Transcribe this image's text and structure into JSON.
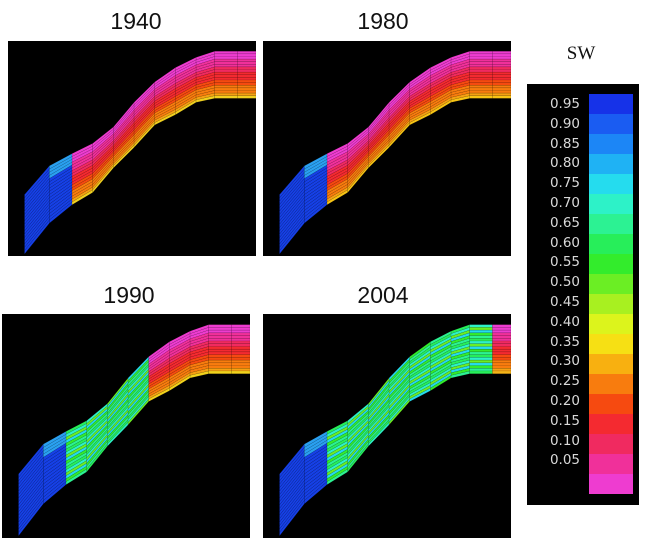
{
  "legend": {
    "title": "SW",
    "labels": [
      "0.95",
      "0.90",
      "0.85",
      "0.80",
      "0.75",
      "0.70",
      "0.65",
      "0.60",
      "0.55",
      "0.50",
      "0.45",
      "0.40",
      "0.35",
      "0.30",
      "0.25",
      "0.20",
      "0.15",
      "0.10",
      "0.05"
    ],
    "colors": [
      "#1632e8",
      "#1a5cf2",
      "#1c86f6",
      "#1fb2f4",
      "#25dcee",
      "#2df2c8",
      "#2cf293",
      "#27ee5a",
      "#33ec2c",
      "#6bee24",
      "#a8f020",
      "#dcf41c",
      "#f6e014",
      "#f8b010",
      "#f87c0e",
      "#f64a10",
      "#f42a30",
      "#f02a60",
      "#f0309a",
      "#ee3cd0"
    ]
  },
  "panels": [
    {
      "year": "1940",
      "water_fraction": 0.1,
      "bottom_color": "#f0d020"
    },
    {
      "year": "1980",
      "water_fraction": 0.18,
      "bottom_color": "#f7c415"
    },
    {
      "year": "1990",
      "water_fraction": 0.55,
      "bottom_color": "#f2d21c"
    },
    {
      "year": "2004",
      "water_fraction": 0.92,
      "bottom_color": "#f7b418"
    }
  ]
}
